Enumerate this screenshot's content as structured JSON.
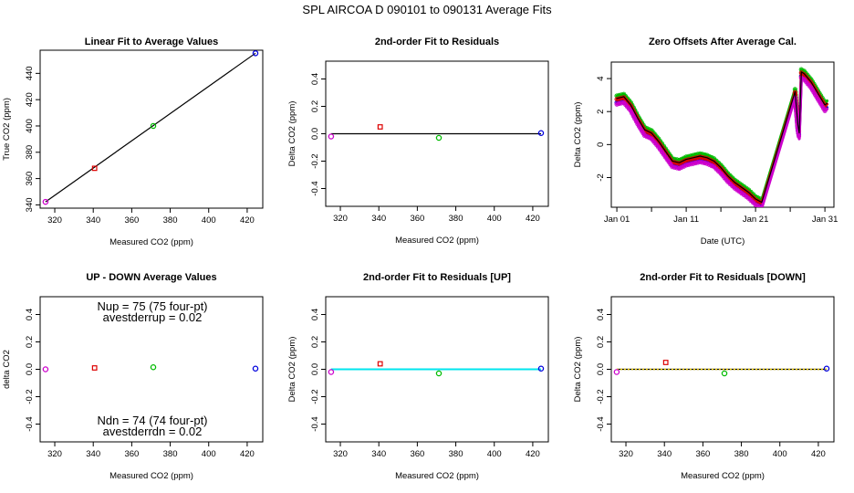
{
  "figure": {
    "title": "SPL    AIRCOA D    090101 to 090131    Average Fits"
  },
  "chart_data": [
    {
      "id": "p1",
      "type": "scatter",
      "title": "Linear Fit to Average Values",
      "xlabel": "Measured CO2 (ppm)",
      "ylabel": "True CO2 (ppm)",
      "xlim": [
        312.4,
        428.1
      ],
      "ylim": [
        337.5,
        457.6
      ],
      "xticks": [
        320,
        340,
        360,
        380,
        400,
        420
      ],
      "yticks": [
        340,
        360,
        380,
        400,
        420,
        440
      ],
      "xticklabels": [
        "320",
        "340",
        "360",
        "380",
        "400",
        "420"
      ],
      "yticklabels": [
        "340",
        "360",
        "380",
        "400",
        "420",
        "440"
      ],
      "points": [
        {
          "x": 315.2,
          "y": 342.3,
          "color": "#cc00cc",
          "shape": "circle"
        },
        {
          "x": 340.7,
          "y": 367.8,
          "color": "#dd0000",
          "shape": "square"
        },
        {
          "x": 371.2,
          "y": 400.0,
          "color": "#00bb00",
          "shape": "circle"
        },
        {
          "x": 424.3,
          "y": 455.3,
          "color": "#0000dd",
          "shape": "circle"
        }
      ],
      "lines": [
        {
          "x": [
            315.2,
            424.3
          ],
          "y": [
            342.3,
            455.3
          ],
          "color": "#000000"
        }
      ]
    },
    {
      "id": "p2",
      "type": "scatter",
      "title": "2nd-order Fit to Residuals",
      "xlabel": "Measured CO2 (ppm)",
      "ylabel": "Delta CO2 (ppm)",
      "xlim": [
        312.4,
        428.1
      ],
      "ylim": [
        -0.53,
        0.53
      ],
      "xticks": [
        320,
        340,
        360,
        380,
        400,
        420
      ],
      "yticks": [
        -0.4,
        -0.2,
        0.0,
        0.2,
        0.4
      ],
      "xticklabels": [
        "320",
        "340",
        "360",
        "380",
        "400",
        "420"
      ],
      "yticklabels": [
        "-0.4",
        "-0.2",
        "0.0",
        "0.2",
        "0.4"
      ],
      "points": [
        {
          "x": 315.2,
          "y": -0.02,
          "color": "#cc00cc",
          "shape": "circle"
        },
        {
          "x": 340.7,
          "y": 0.05,
          "color": "#dd0000",
          "shape": "square"
        },
        {
          "x": 371.2,
          "y": -0.03,
          "color": "#00bb00",
          "shape": "circle"
        },
        {
          "x": 424.3,
          "y": 0.005,
          "color": "#0000dd",
          "shape": "circle"
        }
      ],
      "lines": [
        {
          "x": [
            315.2,
            424.3
          ],
          "y": [
            0.0,
            0.0
          ],
          "color": "#000000"
        }
      ]
    },
    {
      "id": "p3",
      "type": "line",
      "title": "Zero Offsets After Average Cal.",
      "xlabel": "Date (UTC)",
      "ylabel": "Delta CO2 (ppm)",
      "xlim": [
        -0.8,
        31.3
      ],
      "ylim": [
        -3.8,
        5.0
      ],
      "xticks": [
        0,
        5,
        10,
        15,
        20,
        25,
        30
      ],
      "xticklabels": [
        "Jan 01",
        "",
        "Jan 11",
        "",
        "Jan 21",
        "",
        "Jan 31"
      ],
      "yticks": [
        -2,
        0,
        2,
        4
      ],
      "yticklabels": [
        "-2",
        "0",
        "2",
        "4"
      ],
      "series": [
        {
          "name": "blue",
          "color": "#0000dd",
          "offset": -0.25,
          "x": [
            0,
            1,
            2,
            3,
            4,
            5,
            6,
            7,
            8,
            9,
            10,
            11,
            12,
            13,
            14,
            15,
            16,
            17,
            18,
            19,
            20,
            20.9,
            25.7,
            26.1,
            26.3,
            26.6,
            27,
            28,
            29,
            30,
            30.3
          ],
          "y": [
            2.8,
            2.9,
            2.4,
            1.6,
            0.9,
            0.7,
            0.2,
            -0.4,
            -1.0,
            -1.1,
            -0.9,
            -0.8,
            -0.7,
            -0.8,
            -1.0,
            -1.4,
            -1.9,
            -2.3,
            -2.6,
            -2.9,
            -3.3,
            -3.5,
            3.2,
            1.2,
            0.7,
            4.4,
            4.3,
            3.8,
            3.1,
            2.4,
            2.5
          ]
        },
        {
          "name": "green",
          "color": "#00bb00",
          "offset": 0.15,
          "x": [
            0,
            1,
            2,
            3,
            4,
            5,
            6,
            7,
            8,
            9,
            10,
            11,
            12,
            13,
            14,
            15,
            16,
            17,
            18,
            19,
            20,
            20.9,
            25.7,
            26.1,
            26.3,
            26.6,
            27,
            28,
            29,
            30,
            30.3
          ],
          "y": [
            2.8,
            2.9,
            2.4,
            1.6,
            0.9,
            0.7,
            0.2,
            -0.4,
            -1.0,
            -1.1,
            -0.9,
            -0.8,
            -0.7,
            -0.8,
            -1.0,
            -1.4,
            -1.9,
            -2.3,
            -2.6,
            -2.9,
            -3.3,
            -3.5,
            3.2,
            1.2,
            0.7,
            4.4,
            4.3,
            3.8,
            3.1,
            2.4,
            2.5
          ]
        },
        {
          "name": "red",
          "color": "#dd0000",
          "offset": -0.05,
          "x": [
            0,
            1,
            2,
            3,
            4,
            5,
            6,
            7,
            8,
            9,
            10,
            11,
            12,
            13,
            14,
            15,
            16,
            17,
            18,
            19,
            20,
            20.9,
            25.7,
            26.1,
            26.3,
            26.6,
            27,
            28,
            29,
            30,
            30.3
          ],
          "y": [
            2.8,
            2.9,
            2.4,
            1.6,
            0.9,
            0.7,
            0.2,
            -0.4,
            -1.0,
            -1.1,
            -0.9,
            -0.8,
            -0.7,
            -0.8,
            -1.0,
            -1.4,
            -1.9,
            -2.3,
            -2.6,
            -2.9,
            -3.3,
            -3.5,
            3.2,
            1.2,
            0.7,
            4.4,
            4.3,
            3.8,
            3.1,
            2.4,
            2.5
          ]
        },
        {
          "name": "magenta",
          "color": "#cc00cc",
          "offset": -0.35,
          "x": [
            0,
            1,
            2,
            3,
            4,
            5,
            6,
            7,
            8,
            9,
            10,
            11,
            12,
            13,
            14,
            15,
            16,
            17,
            18,
            19,
            20,
            20.9,
            25.7,
            26.1,
            26.3,
            26.6,
            27,
            28,
            29,
            30,
            30.3
          ],
          "y": [
            2.8,
            2.9,
            2.4,
            1.6,
            0.9,
            0.7,
            0.2,
            -0.4,
            -1.0,
            -1.1,
            -0.9,
            -0.8,
            -0.7,
            -0.8,
            -1.0,
            -1.4,
            -1.9,
            -2.3,
            -2.6,
            -2.9,
            -3.3,
            -3.5,
            3.2,
            1.2,
            0.7,
            4.4,
            4.3,
            3.8,
            3.1,
            2.4,
            2.5
          ]
        },
        {
          "name": "fit",
          "color": "#000000",
          "offset": 0.0,
          "x": [
            0,
            1,
            2,
            3,
            4,
            5,
            6,
            7,
            8,
            9,
            10,
            11,
            12,
            13,
            14,
            15,
            16,
            17,
            18,
            19,
            20,
            20.9,
            25.7,
            26.1,
            26.3,
            26.6,
            27,
            28,
            29,
            30,
            30.3
          ],
          "y": [
            2.8,
            2.9,
            2.4,
            1.6,
            0.9,
            0.7,
            0.2,
            -0.4,
            -1.0,
            -1.1,
            -0.9,
            -0.8,
            -0.7,
            -0.8,
            -1.0,
            -1.4,
            -1.9,
            -2.3,
            -2.6,
            -2.9,
            -3.3,
            -3.5,
            3.2,
            1.2,
            0.7,
            4.4,
            4.3,
            3.8,
            3.1,
            2.4,
            2.5
          ]
        }
      ]
    },
    {
      "id": "p4",
      "type": "scatter",
      "title": "UP - DOWN Average Values",
      "xlabel": "Measured CO2 (ppm)",
      "ylabel": "delta CO2",
      "xlim": [
        312.4,
        428.1
      ],
      "ylim": [
        -0.53,
        0.53
      ],
      "xticks": [
        320,
        340,
        360,
        380,
        400,
        420
      ],
      "yticks": [
        -0.4,
        -0.2,
        0.0,
        0.2,
        0.4
      ],
      "xticklabels": [
        "320",
        "340",
        "360",
        "380",
        "400",
        "420"
      ],
      "yticklabels": [
        "-0.4",
        "-0.2",
        "0.0",
        "0.2",
        "0.4"
      ],
      "points": [
        {
          "x": 315.2,
          "y": 0.0,
          "color": "#cc00cc",
          "shape": "circle"
        },
        {
          "x": 340.7,
          "y": 0.01,
          "color": "#dd0000",
          "shape": "square"
        },
        {
          "x": 371.2,
          "y": 0.015,
          "color": "#00bb00",
          "shape": "circle"
        },
        {
          "x": 424.3,
          "y": 0.005,
          "color": "#0000dd",
          "shape": "circle"
        }
      ],
      "lines": [],
      "annotations": {
        "nup": "Nup = 75 (75 four-pt)",
        "avestderrup": "avestderrup =  0.02",
        "ndn": "Ndn = 74 (74 four-pt)",
        "avestderrdn": "avestderrdn =  0.02"
      }
    },
    {
      "id": "p5",
      "type": "scatter",
      "title": "2nd-order Fit to Residuals [UP]",
      "xlabel": "Measured CO2 (ppm)",
      "ylabel": "Delta CO2 (ppm)",
      "xlim": [
        312.4,
        428.1
      ],
      "ylim": [
        -0.53,
        0.53
      ],
      "xticks": [
        320,
        340,
        360,
        380,
        400,
        420
      ],
      "yticks": [
        -0.4,
        -0.2,
        0.0,
        0.2,
        0.4
      ],
      "xticklabels": [
        "320",
        "340",
        "360",
        "380",
        "400",
        "420"
      ],
      "yticklabels": [
        "-0.4",
        "-0.2",
        "0.0",
        "0.2",
        "0.4"
      ],
      "points": [
        {
          "x": 315.2,
          "y": -0.02,
          "color": "#cc00cc",
          "shape": "circle"
        },
        {
          "x": 340.7,
          "y": 0.04,
          "color": "#dd0000",
          "shape": "square"
        },
        {
          "x": 371.2,
          "y": -0.03,
          "color": "#00bb00",
          "shape": "circle"
        },
        {
          "x": 424.3,
          "y": 0.005,
          "color": "#0000dd",
          "shape": "circle"
        }
      ],
      "lines": [
        {
          "x": [
            315.2,
            424.3
          ],
          "y": [
            0.0,
            0.0
          ],
          "color": "#000000"
        },
        {
          "x": [
            315.2,
            424.3
          ],
          "y": [
            0.0,
            0.0
          ],
          "color": "#00e5ee",
          "width": 2
        }
      ]
    },
    {
      "id": "p6",
      "type": "scatter",
      "title": "2nd-order Fit to Residuals [DOWN]",
      "xlabel": "Measured CO2 (ppm)",
      "ylabel": "Delta CO2 (ppm)",
      "xlim": [
        312.4,
        428.1
      ],
      "ylim": [
        -0.53,
        0.53
      ],
      "xticks": [
        320,
        340,
        360,
        380,
        400,
        420
      ],
      "yticks": [
        -0.4,
        -0.2,
        0.0,
        0.2,
        0.4
      ],
      "xticklabels": [
        "320",
        "340",
        "360",
        "380",
        "400",
        "420"
      ],
      "yticklabels": [
        "-0.4",
        "-0.2",
        "0.0",
        "0.2",
        "0.4"
      ],
      "points": [
        {
          "x": 315.2,
          "y": -0.02,
          "color": "#cc00cc",
          "shape": "circle"
        },
        {
          "x": 340.7,
          "y": 0.05,
          "color": "#dd0000",
          "shape": "square"
        },
        {
          "x": 371.2,
          "y": -0.03,
          "color": "#00bb00",
          "shape": "circle"
        },
        {
          "x": 424.3,
          "y": 0.005,
          "color": "#0000dd",
          "shape": "circle"
        }
      ],
      "lines": [
        {
          "x": [
            315.2,
            424.3
          ],
          "y": [
            0.0,
            0.0
          ],
          "color": "#000000"
        },
        {
          "x": [
            315.2,
            424.3
          ],
          "y": [
            0.0,
            0.0
          ],
          "color": "#e8c800",
          "width": 1.5,
          "dash": "2,2"
        }
      ]
    }
  ]
}
